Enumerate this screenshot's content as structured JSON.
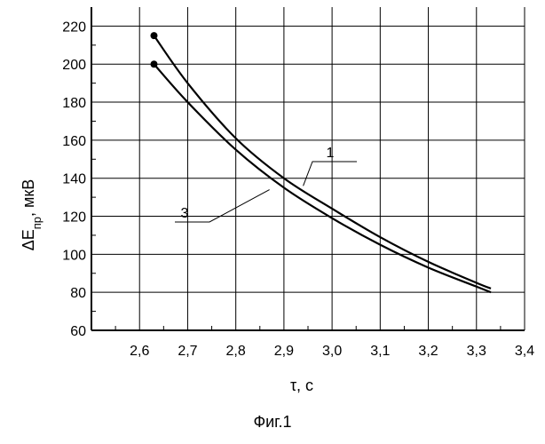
{
  "chart_data": {
    "type": "line",
    "title": "",
    "xlabel": "τ, с",
    "ylabel_main": "ΔE",
    "ylabel_sub": "пр",
    "ylabel_unit": ", мкВ",
    "xlim": [
      2.5,
      3.4
    ],
    "ylim": [
      60,
      230
    ],
    "x_ticks": [
      2.6,
      2.7,
      2.8,
      2.9,
      3.0,
      3.1,
      3.2,
      3.3,
      3.4
    ],
    "x_tick_labels": [
      "2,6",
      "2,7",
      "2,8",
      "2,9",
      "3,0",
      "3,1",
      "3,2",
      "3,3",
      "3,4"
    ],
    "y_ticks": [
      60,
      80,
      100,
      120,
      140,
      160,
      180,
      200,
      220
    ],
    "y_tick_labels": [
      "60",
      "80",
      "100",
      "120",
      "140",
      "160",
      "180",
      "200",
      "220"
    ],
    "grid": true,
    "series": [
      {
        "name": "1",
        "x": [
          2.63,
          2.7,
          2.8,
          2.9,
          3.0,
          3.1,
          3.2,
          3.3,
          3.33
        ],
        "values": [
          215,
          190,
          161,
          140,
          124,
          109,
          96,
          85,
          82
        ],
        "start_marker": true
      },
      {
        "name": "3",
        "x": [
          2.63,
          2.7,
          2.8,
          2.9,
          3.0,
          3.1,
          3.2,
          3.3,
          3.33
        ],
        "values": [
          200,
          180,
          155,
          135,
          119,
          105,
          93,
          83,
          80
        ],
        "start_marker": true
      }
    ],
    "annotations": [
      {
        "text": "1",
        "series": "1",
        "anchor_x": 2.94,
        "anchor_y": 136
      },
      {
        "text": "3",
        "series": "3",
        "anchor_x": 2.87,
        "anchor_y": 134
      }
    ]
  },
  "caption": "Фиг.1"
}
